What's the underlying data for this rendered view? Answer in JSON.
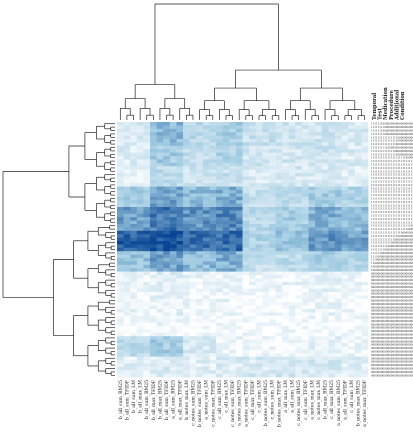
{
  "chart_data": {
    "type": "heatmap",
    "title": "",
    "xlabel": "",
    "ylabel": "",
    "legend": "none",
    "color_scale": {
      "low": "#ffffff",
      "mid": "#9ecae1",
      "high": "#084594",
      "vmin": 0,
      "vmax": 1
    },
    "column_labels": [
      "b_all_sum_BM25",
      "b_all_sum_TFIDF",
      "b_all_sum_LM",
      "b_all_max_LM",
      "b_all_sum_BM25",
      "b_all_max_TFIDF",
      "b_all_max_BM25",
      "b_all_sum_TFIDF",
      "a_all_sum_BM25",
      "a_all_max_TFIDF",
      "b_notes_max_LM",
      "c_notes_sum_BM25",
      "b_notes_sum_TFIDF",
      "a_notes_sum_LM",
      "c_notes_max_TFIDF",
      "c_all_sum_BM25",
      "c_all_max_LM",
      "c_notes_sum_TFIDF",
      "a_notes_max_BM25",
      "a_notes_sum_TFIDF",
      "c_all_max_TFIDF",
      "c_all_sum_LM",
      "b_notes_sum_BM25",
      "c_notes_sum_LM",
      "b_notes_max_TFIDF",
      "a_all_max_LM",
      "a_all_sum_LM",
      "c_notes_max_BM25",
      "c_all_sum_TFIDF",
      "a_notes_max_LM",
      "c_notes_max_LM",
      "b_all_max_BM25",
      "c_all_max_BM25",
      "a_notes_sum_BM25",
      "a_all_sum_TFIDF",
      "c_all_sum_LM",
      "b_notes_max_BM25",
      "a_notes_max_TFIDF"
    ],
    "row_labels": [
      "11111110000000000000000000000000000000000",
      "11111111000000000000000000000000000000000",
      "11111110000000000000000000000000000000000",
      "11111111000000000000000000000000000000000",
      "11111111111111110000000000000000000000000",
      "11111111111111110000000000000000000000000",
      "11111111111111100000000000000000000000000",
      "11111111110000000000000000000000000000000",
      "11111111111111000000000000000000000000000",
      "11111111111111100000000000000000000000000",
      "11111111111111111111100000000000000000000",
      "11111111111111111111111111111111110000000",
      "11111111111111111111111111111111000000000",
      "11111111111111111111111111111111111100000",
      "11111111111111111111111111111111111111000",
      "11111111111111111111111111111111111100000",
      "11111111111111111111111111111111111111000",
      "11111111111111111111111111111111111111100",
      "11111111111111111111111111111111111111110",
      "11111111111111111111111111111111111111111",
      "11111111111111111111111111111111111111110",
      "11111111111111111111111111111111111111100",
      "11111111111111111111111111111111111111000",
      "11111111111111111111111111111111111100000",
      "11111111111111111111111111111111111000000",
      "11111111111111111111111111111111000000000",
      "11111111111111111111111111111111100000000",
      "11111111111111111111111111111110000000000",
      "11111111111111111111111111110000000000000",
      "11111111111111111111111111100000000000000",
      "11111111111111111111111100000000000000000",
      "11111111111111111111110000000000000000000",
      "11111111111111111100000000000000000000000",
      "11111111111111110000000000000000000000000",
      "11111111111111000000000000000000000000000",
      "11111111111100000000000000000000000000000",
      "11111111110000000000000000000000000000000",
      "11111111000000000000000000000000000000000",
      "11111100000000000000000000000000000000000",
      "11110000000000000000000000000000000000000",
      "11100000000000000000000000000000000000000",
      "11000000000000000000000000000000000000000",
      "10000000000000000000000000000000000000000",
      "10000000000000000000000000000000000000000",
      "00000000000000000000000000000000000000000",
      "00000000000000000000000000000000000000000",
      "00000000000000000000000000000000000000000",
      "00000000000000000000000000000000000000000",
      "00000000000000000000000000000000000000000",
      "00000000000000000000000000000000000000000",
      "00000000000000000000000000000000000000000",
      "00000000000000000000000000000000000000000",
      "00000000000000000000000000000000000000000",
      "00000000000000000000000000000000000000000",
      "00000000000000000000000000000000000000000",
      "00000000000000000000000000000000000000000",
      "00000000000000000000000000000000000000000",
      "00000000000000000000000000000000000000000",
      "00000000000000000000000000000000000000000",
      "00000000000000000000000000000000000000000",
      "00000000000000000000000000000000000000000",
      "00000000000000000000000000000000000000000",
      "00000000000000000000000000000000000000000",
      "00000000000000000000000000000000000000000",
      "00000000000000000000000000000000000000000",
      "00000000000000000000000000000000000000000",
      "00000000000000000000000000000000000000000",
      "00000000000000000000000000000000000000000",
      "00000000000000000000000000000000000000000",
      "00000000000000000000000000000000000000000",
      "00000000000000000000000000000000000000000",
      "00000000000000000000000000000000000000000",
      "00000000000000000000000000000000000000000",
      "00000000000000000000000000000000000000000",
      "00000000000000000000000000000000000000000"
    ],
    "column_header_labels": [
      "Temporal",
      "Test",
      "Medication",
      "Procedure",
      "Additional",
      "Condition"
    ],
    "row_group_intensity": [
      [
        0.2,
        0.55,
        0.35,
        0.45,
        0.3,
        0.25,
        0.25,
        0.2
      ],
      [
        0.18,
        0.45,
        0.3,
        0.4,
        0.25,
        0.22,
        0.25,
        0.18
      ],
      [
        0.15,
        0.35,
        0.25,
        0.3,
        0.2,
        0.2,
        0.2,
        0.15
      ],
      [
        0.45,
        0.65,
        0.55,
        0.6,
        0.3,
        0.35,
        0.45,
        0.4
      ],
      [
        0.65,
        0.8,
        0.7,
        0.75,
        0.35,
        0.45,
        0.6,
        0.55
      ],
      [
        0.9,
        0.95,
        0.85,
        0.85,
        0.4,
        0.5,
        0.7,
        0.65
      ],
      [
        0.5,
        0.65,
        0.55,
        0.6,
        0.3,
        0.35,
        0.45,
        0.4
      ],
      [
        0.1,
        0.15,
        0.1,
        0.12,
        0.08,
        0.1,
        0.12,
        0.08
      ],
      [
        0.08,
        0.12,
        0.08,
        0.1,
        0.05,
        0.06,
        0.1,
        0.05
      ],
      [
        0.05,
        0.08,
        0.05,
        0.06,
        0.04,
        0.05,
        0.06,
        0.04
      ],
      [
        0.35,
        0.45,
        0.2,
        0.1,
        0.1,
        0.08,
        0.12,
        0.08
      ],
      [
        0.15,
        0.18,
        0.15,
        0.18,
        0.2,
        0.22,
        0.2,
        0.15
      ]
    ]
  }
}
